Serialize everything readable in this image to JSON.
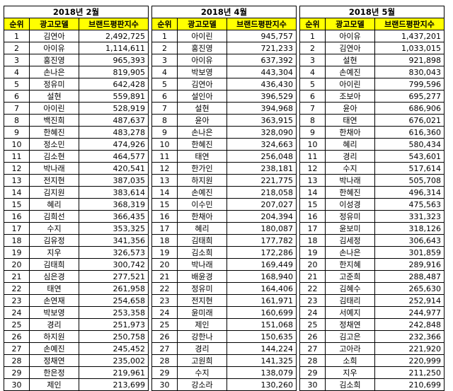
{
  "columns": {
    "rank": "순위",
    "model": "광고모델",
    "index": "브랜드평판지수"
  },
  "tables": [
    {
      "title": "2018년 2월",
      "rows": [
        [
          "1",
          "김연아",
          "2,492,725"
        ],
        [
          "2",
          "아이유",
          "1,114,611"
        ],
        [
          "3",
          "홍진영",
          "965,393"
        ],
        [
          "4",
          "손나은",
          "819,905"
        ],
        [
          "5",
          "정유미",
          "642,428"
        ],
        [
          "6",
          "설현",
          "559,891"
        ],
        [
          "7",
          "아이린",
          "528,919"
        ],
        [
          "8",
          "백진희",
          "487,637"
        ],
        [
          "9",
          "한혜진",
          "483,278"
        ],
        [
          "10",
          "정소민",
          "474,926"
        ],
        [
          "11",
          "김소현",
          "464,577"
        ],
        [
          "12",
          "박나래",
          "420,541"
        ],
        [
          "13",
          "전지현",
          "387,035"
        ],
        [
          "14",
          "김지원",
          "383,614"
        ],
        [
          "15",
          "혜리",
          "368,319"
        ],
        [
          "16",
          "김희선",
          "366,435"
        ],
        [
          "17",
          "수지",
          "353,325"
        ],
        [
          "18",
          "김유정",
          "341,356"
        ],
        [
          "19",
          "지우",
          "326,573"
        ],
        [
          "20",
          "김태희",
          "300,742"
        ],
        [
          "21",
          "심은경",
          "277,521"
        ],
        [
          "22",
          "태연",
          "261,958"
        ],
        [
          "23",
          "손연재",
          "254,658"
        ],
        [
          "24",
          "박보영",
          "253,358"
        ],
        [
          "25",
          "경리",
          "251,973"
        ],
        [
          "26",
          "하지원",
          "250,758"
        ],
        [
          "27",
          "손예진",
          "245,452"
        ],
        [
          "28",
          "정채연",
          "235,002"
        ],
        [
          "29",
          "한은정",
          "219,961"
        ],
        [
          "30",
          "제인",
          "213,699"
        ]
      ]
    },
    {
      "title": "2018년 4월",
      "rows": [
        [
          "1",
          "아이린",
          "945,757"
        ],
        [
          "2",
          "홍진영",
          "721,233"
        ],
        [
          "3",
          "아이유",
          "637,392"
        ],
        [
          "4",
          "박보영",
          "443,304"
        ],
        [
          "5",
          "김연아",
          "436,430"
        ],
        [
          "6",
          "설인아",
          "396,529"
        ],
        [
          "7",
          "설현",
          "394,968"
        ],
        [
          "8",
          "윤아",
          "363,915"
        ],
        [
          "9",
          "손나은",
          "328,090"
        ],
        [
          "10",
          "한혜진",
          "324,663"
        ],
        [
          "11",
          "태연",
          "256,048"
        ],
        [
          "12",
          "한가인",
          "238,181"
        ],
        [
          "13",
          "하지원",
          "221,775"
        ],
        [
          "14",
          "손예진",
          "218,058"
        ],
        [
          "15",
          "이수민",
          "207,027"
        ],
        [
          "16",
          "한채아",
          "204,394"
        ],
        [
          "17",
          "혜리",
          "180,087"
        ],
        [
          "18",
          "김태희",
          "177,782"
        ],
        [
          "19",
          "김소희",
          "172,286"
        ],
        [
          "20",
          "박나래",
          "169,449"
        ],
        [
          "21",
          "배윤경",
          "168,940"
        ],
        [
          "22",
          "정유미",
          "164,406"
        ],
        [
          "23",
          "전지현",
          "161,971"
        ],
        [
          "24",
          "윤미래",
          "160,699"
        ],
        [
          "25",
          "제인",
          "151,068"
        ],
        [
          "26",
          "강한나",
          "150,635"
        ],
        [
          "27",
          "경리",
          "144,224"
        ],
        [
          "28",
          "고원희",
          "141,325"
        ],
        [
          "29",
          "수지",
          "138,079"
        ],
        [
          "30",
          "강소라",
          "130,260"
        ]
      ]
    },
    {
      "title": "2018년 5월",
      "rows": [
        [
          "1",
          "아이유",
          "1,437,201"
        ],
        [
          "2",
          "김연아",
          "1,033,015"
        ],
        [
          "3",
          "설현",
          "921,898"
        ],
        [
          "4",
          "손예진",
          "830,043"
        ],
        [
          "5",
          "아이린",
          "799,596"
        ],
        [
          "6",
          "조보아",
          "695,277"
        ],
        [
          "7",
          "윤아",
          "686,906"
        ],
        [
          "8",
          "태연",
          "676,021"
        ],
        [
          "9",
          "한채아",
          "616,360"
        ],
        [
          "10",
          "혜리",
          "580,434"
        ],
        [
          "11",
          "경리",
          "543,601"
        ],
        [
          "12",
          "수지",
          "517,614"
        ],
        [
          "13",
          "박나래",
          "505,708"
        ],
        [
          "14",
          "한혜진",
          "496,314"
        ],
        [
          "15",
          "이성경",
          "475,563"
        ],
        [
          "16",
          "정유미",
          "331,323"
        ],
        [
          "17",
          "윤보미",
          "318,126"
        ],
        [
          "18",
          "김세정",
          "306,643"
        ],
        [
          "19",
          "손나은",
          "301,859"
        ],
        [
          "20",
          "한지혜",
          "289,916"
        ],
        [
          "21",
          "고준희",
          "288,487"
        ],
        [
          "22",
          "김혜수",
          "265,630"
        ],
        [
          "23",
          "김태리",
          "252,914"
        ],
        [
          "24",
          "서예지",
          "244,977"
        ],
        [
          "25",
          "정채연",
          "242,848"
        ],
        [
          "26",
          "김고은",
          "232,366"
        ],
        [
          "27",
          "고아라",
          "221,920"
        ],
        [
          "28",
          "소희",
          "220,999"
        ],
        [
          "29",
          "지우",
          "211,250"
        ],
        [
          "30",
          "김소희",
          "210,699"
        ]
      ]
    }
  ]
}
